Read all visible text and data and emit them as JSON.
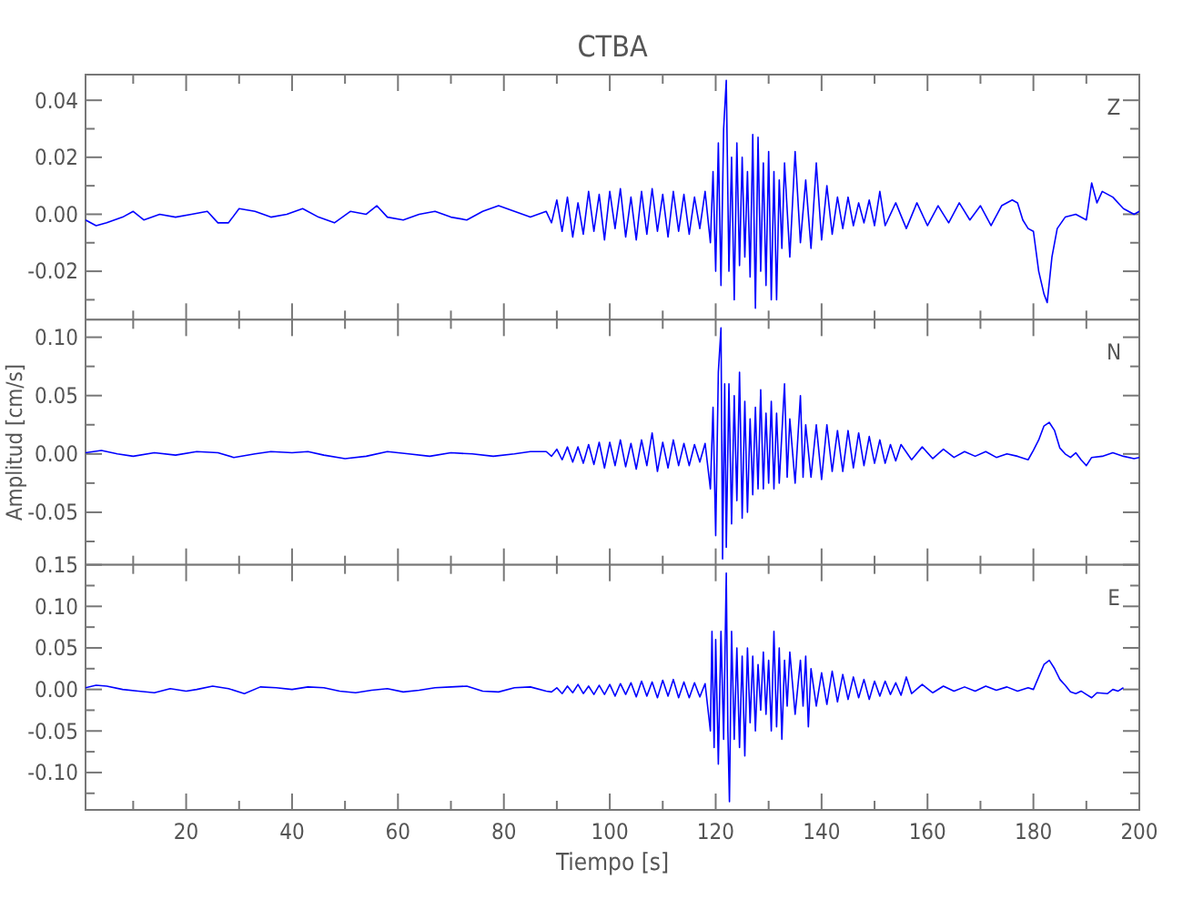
{
  "chart_data": [
    {
      "type": "line",
      "title": "CTBA",
      "annotations": [
        "Z"
      ],
      "tick_labels": "y",
      "xlim": [
        1,
        200
      ],
      "ylim": [
        -0.037,
        0.049
      ],
      "xticks": [
        {
          "value": 10,
          "label": null
        },
        20,
        {
          "value": 30,
          "label": null
        },
        40,
        {
          "value": 50,
          "label": null
        },
        60,
        {
          "value": 70,
          "label": null
        },
        80,
        {
          "value": 90,
          "label": null
        },
        100,
        {
          "value": 110,
          "label": null
        },
        120,
        {
          "value": 130,
          "label": null
        },
        140,
        {
          "value": 150,
          "label": null
        },
        160,
        {
          "value": 170,
          "label": null
        },
        180,
        {
          "value": 190,
          "label": null
        },
        200
      ],
      "yticks": [
        {
          "value": -0.03,
          "label": null
        },
        -0.02,
        {
          "value": -0.01,
          "label": null
        },
        {
          "value": 0,
          "label": "0.00"
        },
        {
          "value": 0.01,
          "label": null
        },
        0.02,
        {
          "value": 0.03,
          "label": null
        },
        0.04
      ],
      "series": [
        {
          "color": "#0000ff",
          "x": [
            1,
            3,
            5,
            8,
            10,
            12,
            15,
            18,
            21,
            24,
            26,
            28,
            30,
            33,
            36,
            39,
            42,
            45,
            48,
            51,
            54,
            56,
            58,
            61,
            64,
            67,
            70,
            73,
            76,
            79,
            82,
            85,
            88,
            89,
            90,
            91,
            92,
            93,
            94,
            95,
            96,
            97,
            98,
            99,
            100,
            101,
            102,
            103,
            104,
            105,
            106,
            107,
            108,
            109,
            110,
            111,
            112,
            113,
            114,
            115,
            116,
            117,
            118,
            119,
            119.5,
            120,
            120.5,
            121,
            121.5,
            122,
            122.5,
            123,
            123.5,
            124,
            124.5,
            125,
            125.5,
            126,
            126.5,
            127,
            127.5,
            128,
            128.5,
            129,
            129.5,
            130,
            130.5,
            131,
            131.5,
            132,
            132.5,
            133,
            134,
            135,
            136,
            137,
            138,
            139,
            140,
            141,
            142,
            143,
            144,
            145,
            146,
            147,
            148,
            149,
            150,
            151,
            152,
            154,
            156,
            158,
            160,
            162,
            164,
            166,
            168,
            170,
            172,
            174,
            176,
            177,
            178,
            179,
            180,
            181,
            182,
            182.6,
            183.5,
            184.5,
            186,
            188,
            190,
            191,
            192,
            193,
            195,
            197,
            199,
            200
          ],
          "values": [
            -0.002,
            -0.004,
            -0.003,
            -0.001,
            0.001,
            -0.002,
            0,
            -0.001,
            0,
            0.001,
            -0.003,
            -0.003,
            0.002,
            0.001,
            -0.001,
            0,
            0.002,
            -0.001,
            -0.003,
            0.001,
            0,
            0.003,
            -0.001,
            -0.002,
            0,
            0.001,
            -0.001,
            -0.002,
            0.001,
            0.003,
            0.001,
            -0.001,
            0.001,
            -0.003,
            0.005,
            -0.006,
            0.006,
            -0.008,
            0.004,
            -0.007,
            0.008,
            -0.006,
            0.007,
            -0.009,
            0.008,
            -0.005,
            0.009,
            -0.008,
            0.006,
            -0.009,
            0.008,
            -0.007,
            0.009,
            -0.006,
            0.007,
            -0.008,
            0.008,
            -0.006,
            0.007,
            -0.007,
            0.006,
            -0.005,
            0.008,
            -0.01,
            0.015,
            -0.02,
            0.025,
            -0.025,
            0.03,
            0.047,
            -0.02,
            0.02,
            -0.03,
            0.025,
            -0.018,
            0.02,
            -0.015,
            0.015,
            -0.022,
            0.028,
            -0.033,
            0.027,
            -0.02,
            0.018,
            -0.025,
            0.022,
            -0.03,
            0.015,
            -0.03,
            0.012,
            -0.012,
            0.018,
            -0.015,
            0.022,
            -0.01,
            0.012,
            -0.012,
            0.018,
            -0.009,
            0.01,
            -0.007,
            0.006,
            -0.005,
            0.006,
            -0.004,
            0.004,
            -0.003,
            0.005,
            -0.004,
            0.008,
            -0.004,
            0.004,
            -0.005,
            0.004,
            -0.004,
            0.003,
            -0.003,
            0.004,
            -0.002,
            0.003,
            -0.004,
            0.003,
            0.005,
            0.004,
            -0.002,
            -0.005,
            -0.006,
            -0.02,
            -0.028,
            -0.031,
            -0.015,
            -0.005,
            -0.001,
            0,
            -0.002,
            0.011,
            0.004,
            0.008,
            0.006,
            0.002,
            0,
            0.001
          ]
        }
      ]
    },
    {
      "type": "line",
      "ylabel": "Amplitud [cm/s]",
      "annotations": [
        "N"
      ],
      "tick_labels": "y",
      "xlim": [
        1,
        200
      ],
      "ylim": [
        -0.095,
        0.115
      ],
      "xticks": [
        {
          "value": 10,
          "label": null
        },
        20,
        {
          "value": 30,
          "label": null
        },
        40,
        {
          "value": 50,
          "label": null
        },
        60,
        {
          "value": 70,
          "label": null
        },
        80,
        {
          "value": 90,
          "label": null
        },
        100,
        {
          "value": 110,
          "label": null
        },
        120,
        {
          "value": 130,
          "label": null
        },
        140,
        {
          "value": 150,
          "label": null
        },
        160,
        {
          "value": 170,
          "label": null
        },
        180,
        {
          "value": 190,
          "label": null
        },
        200
      ],
      "yticks": [
        {
          "value": -0.075,
          "label": null
        },
        -0.05,
        {
          "value": -0.025,
          "label": null
        },
        {
          "value": 0,
          "label": "0.00"
        },
        {
          "value": 0.025,
          "label": null
        },
        0.05,
        {
          "value": 0.075,
          "label": null
        },
        {
          "value": 0.1,
          "label": "0.10"
        }
      ],
      "series": [
        {
          "color": "#0000ff",
          "x": [
            1,
            4,
            7,
            10,
            14,
            18,
            22,
            26,
            29,
            33,
            36,
            40,
            43,
            46,
            50,
            54,
            58,
            62,
            66,
            70,
            74,
            78,
            82,
            85,
            88,
            89,
            90,
            91,
            92,
            93,
            94,
            95,
            96,
            97,
            98,
            99,
            100,
            101,
            102,
            103,
            104,
            105,
            106,
            107,
            108,
            109,
            110,
            111,
            112,
            113,
            114,
            115,
            116,
            117,
            118,
            119,
            119.5,
            120,
            120.5,
            121,
            121.3,
            121.7,
            122,
            122.5,
            123,
            123.5,
            124,
            124.5,
            125,
            125.5,
            126,
            126.5,
            127,
            127.5,
            128,
            128.5,
            129,
            129.5,
            130,
            130.5,
            131,
            131.5,
            132,
            133,
            133.5,
            134,
            135,
            136,
            136.5,
            137,
            138,
            139,
            140,
            141,
            142,
            143,
            144,
            145,
            146,
            147,
            148,
            149,
            150,
            151,
            152,
            153,
            154,
            155,
            157,
            159,
            161,
            163,
            165,
            167,
            169,
            171,
            173,
            175,
            177,
            179,
            180,
            181,
            182,
            183,
            184,
            185,
            186,
            187,
            188,
            189,
            190,
            191,
            193,
            195,
            197,
            199,
            200
          ],
          "values": [
            0.001,
            0.003,
            0,
            -0.002,
            0.001,
            -0.001,
            0.002,
            0.001,
            -0.003,
            0,
            0.002,
            0.001,
            0.002,
            -0.001,
            -0.004,
            -0.002,
            0.002,
            0,
            -0.002,
            0.001,
            0,
            -0.002,
            0,
            0.002,
            0.002,
            -0.002,
            0.004,
            -0.005,
            0.006,
            -0.007,
            0.006,
            -0.008,
            0.008,
            -0.009,
            0.01,
            -0.012,
            0.01,
            -0.01,
            0.012,
            -0.011,
            0.009,
            -0.013,
            0.012,
            -0.01,
            0.018,
            -0.015,
            0.01,
            -0.012,
            0.012,
            -0.01,
            0.009,
            -0.01,
            0.008,
            -0.007,
            0.009,
            -0.03,
            0.04,
            -0.07,
            0.07,
            0.108,
            -0.09,
            0.06,
            -0.08,
            0.06,
            -0.06,
            0.05,
            -0.04,
            0.07,
            -0.055,
            0.045,
            -0.05,
            0.03,
            -0.035,
            0.04,
            -0.03,
            0.055,
            -0.03,
            0.035,
            -0.025,
            0.045,
            -0.03,
            0.035,
            -0.025,
            0.06,
            -0.02,
            0.03,
            -0.025,
            0.05,
            -0.02,
            0.025,
            -0.02,
            0.025,
            -0.022,
            0.025,
            -0.015,
            0.02,
            -0.015,
            0.02,
            -0.012,
            0.018,
            -0.01,
            0.015,
            -0.008,
            0.012,
            -0.008,
            0.008,
            -0.006,
            0.008,
            -0.005,
            0.006,
            -0.004,
            0.004,
            -0.003,
            0.002,
            -0.002,
            0.002,
            -0.003,
            0,
            -0.002,
            -0.005,
            0.003,
            0.012,
            0.024,
            0.027,
            0.02,
            0.005,
            0,
            -0.003,
            0.001,
            -0.005,
            -0.01,
            -0.003,
            -0.002,
            0.001,
            -0.002,
            -0.004,
            -0.003
          ]
        }
      ]
    },
    {
      "type": "line",
      "xlabel": "Tiempo [s]",
      "annotations": [
        "E"
      ],
      "xlim": [
        1,
        200
      ],
      "ylim": [
        -0.145,
        0.15
      ],
      "xticks": [
        {
          "value": 10,
          "label": null
        },
        20,
        {
          "value": 30,
          "label": null
        },
        40,
        {
          "value": 50,
          "label": null
        },
        60,
        {
          "value": 70,
          "label": null
        },
        80,
        {
          "value": 90,
          "label": null
        },
        100,
        {
          "value": 110,
          "label": null
        },
        120,
        {
          "value": 130,
          "label": null
        },
        140,
        {
          "value": 150,
          "label": null
        },
        160,
        {
          "value": 170,
          "label": null
        },
        180,
        {
          "value": 190,
          "label": null
        },
        200
      ],
      "yticks": [
        {
          "value": -0.125,
          "label": null
        },
        {
          "value": -0.1,
          "label": "-0.10"
        },
        {
          "value": -0.075,
          "label": null
        },
        -0.05,
        {
          "value": -0.025,
          "label": null
        },
        {
          "value": 0,
          "label": "0.00"
        },
        {
          "value": 0.025,
          "label": null
        },
        0.05,
        {
          "value": 0.075,
          "label": null
        },
        {
          "value": 0.1,
          "label": "0.10"
        },
        {
          "value": 0.125,
          "label": null
        },
        0.15
      ],
      "series": [
        {
          "color": "#0000ff",
          "x": [
            1,
            3,
            5,
            8,
            11,
            14,
            17,
            20,
            22,
            25,
            28,
            31,
            34,
            37,
            40,
            43,
            46,
            49,
            52,
            55,
            58,
            61,
            64,
            67,
            70,
            73,
            76,
            79,
            82,
            85,
            88,
            89,
            90,
            91,
            92,
            93,
            94,
            95,
            96,
            97,
            98,
            99,
            100,
            101,
            102,
            103,
            104,
            105,
            106,
            107,
            108,
            109,
            110,
            111,
            112,
            113,
            114,
            115,
            116,
            117,
            118,
            119,
            119.3,
            119.7,
            120,
            120.5,
            121,
            121.5,
            122,
            122.3,
            122.6,
            123,
            123.5,
            124,
            124.5,
            125,
            125.5,
            126,
            126.5,
            127,
            127.5,
            128,
            128.5,
            129,
            129.5,
            130,
            130.5,
            131,
            131.5,
            132,
            132.5,
            133,
            133.5,
            134,
            135,
            136,
            136.5,
            137,
            137.5,
            138,
            139,
            140,
            141,
            142,
            143,
            144,
            145,
            146,
            147,
            148,
            149,
            150,
            151,
            152,
            153,
            154,
            155,
            156,
            157,
            159,
            161,
            163,
            165,
            167,
            169,
            171,
            173,
            175,
            177,
            179,
            180,
            181,
            182,
            183,
            184,
            185,
            186,
            187,
            188,
            189,
            190,
            191,
            192,
            194,
            195,
            196,
            197
          ],
          "values": [
            0.002,
            0.005,
            0.004,
            0,
            -0.002,
            -0.004,
            0.001,
            -0.002,
            0,
            0.004,
            0.001,
            -0.005,
            0.003,
            0.002,
            0,
            0.003,
            0.002,
            -0.002,
            -0.004,
            -0.001,
            0.001,
            -0.003,
            -0.001,
            0.002,
            0.003,
            0.004,
            -0.002,
            -0.003,
            0.002,
            0.003,
            -0.002,
            -0.003,
            0.002,
            -0.005,
            0.004,
            -0.004,
            0.006,
            -0.005,
            0.004,
            -0.006,
            0.005,
            -0.006,
            0.006,
            -0.008,
            0.007,
            -0.006,
            0.008,
            -0.009,
            0.01,
            -0.008,
            0.009,
            -0.01,
            0.011,
            -0.008,
            0.012,
            -0.01,
            0.009,
            -0.01,
            0.008,
            -0.009,
            0.007,
            -0.05,
            0.07,
            -0.07,
            0.06,
            -0.09,
            0.07,
            -0.06,
            0.14,
            -0.05,
            -0.135,
            0.07,
            -0.06,
            0.05,
            -0.07,
            0.04,
            -0.08,
            0.05,
            -0.04,
            0.04,
            -0.05,
            0.03,
            -0.025,
            0.045,
            -0.03,
            0.035,
            -0.05,
            0.07,
            -0.045,
            0.05,
            -0.06,
            0.035,
            -0.02,
            0.045,
            -0.03,
            0.035,
            -0.02,
            0.04,
            -0.045,
            0.025,
            -0.02,
            0.02,
            -0.018,
            0.022,
            -0.015,
            0.018,
            -0.012,
            0.015,
            -0.01,
            0.012,
            -0.012,
            0.01,
            -0.008,
            0.01,
            -0.006,
            0.008,
            -0.007,
            0.015,
            -0.005,
            0.006,
            -0.004,
            0.004,
            -0.002,
            0.003,
            -0.002,
            0.004,
            -0.001,
            0.003,
            -0.002,
            0.002,
            0,
            0.015,
            0.03,
            0.035,
            0.025,
            0.012,
            0.005,
            -0.003,
            -0.005,
            -0.002,
            -0.006,
            -0.01,
            -0.004,
            -0.005,
            0,
            -0.002,
            0.002
          ]
        }
      ]
    }
  ]
}
